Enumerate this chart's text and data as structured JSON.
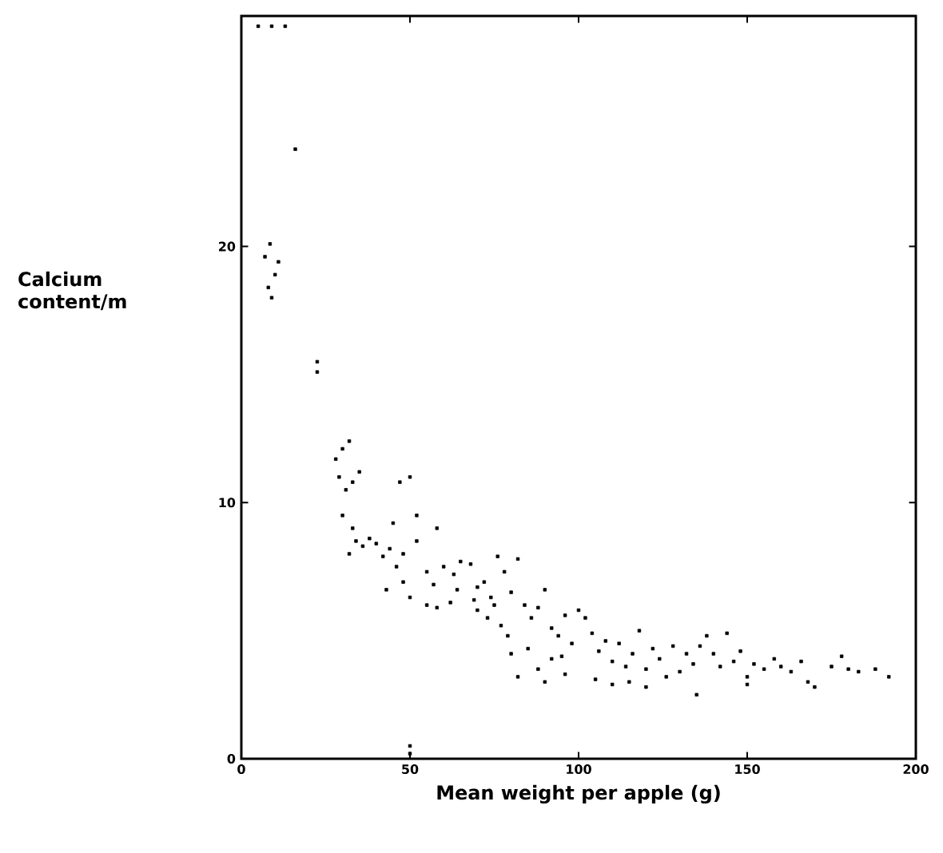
{
  "chart_data": {
    "type": "scatter",
    "xlabel": "Mean weight per apple (g)",
    "ylabel": "Calcium content/m",
    "xlim": [
      0,
      200
    ],
    "ylim": [
      0,
      29
    ],
    "xticks": [
      0,
      50,
      100,
      150,
      200
    ],
    "yticks": [
      0,
      10,
      20
    ],
    "marker": "square",
    "series": [
      {
        "color": "#000000",
        "x": [
          5,
          9,
          13,
          16,
          7,
          8.5,
          11,
          8,
          9,
          10,
          22.5,
          22.5,
          28,
          30,
          32,
          29,
          31,
          33,
          35,
          30,
          33,
          34,
          36,
          38,
          32,
          40,
          42,
          44,
          46,
          48,
          47,
          50,
          52,
          45,
          48,
          50,
          43,
          50,
          50,
          52,
          55,
          57,
          58,
          60,
          62,
          64,
          55,
          58,
          65,
          63,
          68,
          70,
          72,
          74,
          76,
          78,
          80,
          70,
          73,
          77,
          79,
          69,
          75,
          82,
          80,
          84,
          86,
          88,
          90,
          92,
          94,
          96,
          98,
          85,
          88,
          92,
          95,
          100,
          82,
          90,
          96,
          102,
          104,
          106,
          108,
          110,
          112,
          114,
          116,
          118,
          120,
          122,
          124,
          126,
          128,
          105,
          110,
          115,
          120,
          130,
          132,
          134,
          136,
          138,
          140,
          142,
          144,
          146,
          148,
          150,
          152,
          155,
          158,
          160,
          163,
          166,
          168,
          170,
          175,
          178,
          180,
          183,
          188,
          192,
          135,
          150
        ],
        "values": [
          28.6,
          28.6,
          28.6,
          23.8,
          19.6,
          20.1,
          19.4,
          18.4,
          18.0,
          18.9,
          15.5,
          15.1,
          11.7,
          12.1,
          12.4,
          11.0,
          10.5,
          10.8,
          11.2,
          9.5,
          9.0,
          8.5,
          8.3,
          8.6,
          8.0,
          8.4,
          7.9,
          8.2,
          7.5,
          8.0,
          10.8,
          11.0,
          9.5,
          9.2,
          6.9,
          6.3,
          6.6,
          0.5,
          0.2,
          8.5,
          7.3,
          6.8,
          9.0,
          7.5,
          6.1,
          6.6,
          6.0,
          5.9,
          7.7,
          7.2,
          7.6,
          6.7,
          6.9,
          6.3,
          7.9,
          7.3,
          6.5,
          5.8,
          5.5,
          5.2,
          4.8,
          6.2,
          6.0,
          7.8,
          4.1,
          6.0,
          5.5,
          5.9,
          6.6,
          5.1,
          4.8,
          5.6,
          4.5,
          4.3,
          3.5,
          3.9,
          4.0,
          5.8,
          3.2,
          3.0,
          3.3,
          5.5,
          4.9,
          4.2,
          4.6,
          3.8,
          4.5,
          3.6,
          4.1,
          5.0,
          3.5,
          4.3,
          3.9,
          3.2,
          4.4,
          3.1,
          2.9,
          3.0,
          2.8,
          3.4,
          4.1,
          3.7,
          4.4,
          4.8,
          4.1,
          3.6,
          4.9,
          3.8,
          4.2,
          3.2,
          3.7,
          3.5,
          3.9,
          3.6,
          3.4,
          3.8,
          3.0,
          2.8,
          3.6,
          4.0,
          3.5,
          3.4,
          3.5,
          3.2,
          2.5,
          2.9
        ]
      }
    ]
  }
}
